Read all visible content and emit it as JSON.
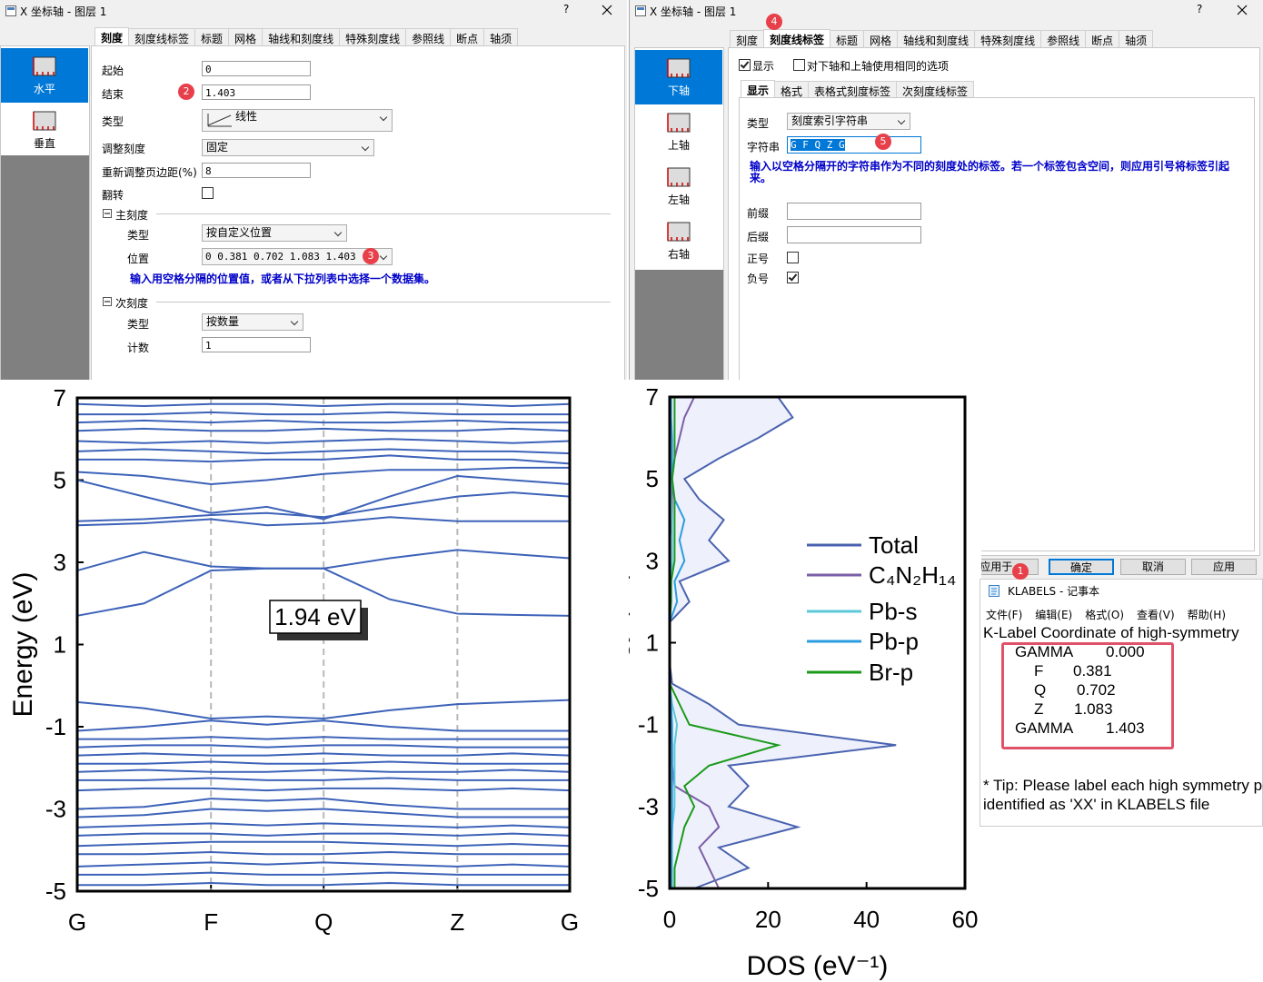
{
  "dialog_left": {
    "title": "X 坐标轴 - 图层 1",
    "help": "?",
    "tabs": [
      "刻度",
      "刻度线标签",
      "标题",
      "网格",
      "轴线和刻度线",
      "特殊刻度线",
      "参照线",
      "断点",
      "轴须"
    ],
    "side": [
      "水平",
      "垂直"
    ],
    "start_label": "起始",
    "start": "0",
    "end_label": "结束",
    "end": "1.403",
    "type_label": "类型",
    "type": "线性",
    "rescale_label": "调整刻度",
    "rescale": "固定",
    "margin_label": "重新调整页边距(%)",
    "margin": "8",
    "flip_label": "翻转",
    "major": {
      "title": "主刻度",
      "type_label": "类型",
      "type": "按自定义位置",
      "pos_label": "位置",
      "pos": "0 0.381 0.702 1.083 1.403",
      "hint": "输入用空格分隔的位置值，或者从下拉列表中选择一个数据集。"
    },
    "minor": {
      "title": "次刻度",
      "type_label": "类型",
      "type": "按数量",
      "count_label": "计数",
      "count": "1"
    }
  },
  "dialog_right": {
    "title": "X 坐标轴 - 图层 1",
    "help": "?",
    "tabs": [
      "刻度",
      "刻度线标签",
      "标题",
      "网格",
      "轴线和刻度线",
      "特殊刻度线",
      "参照线",
      "断点",
      "轴须"
    ],
    "side": [
      "下轴",
      "上轴",
      "左轴",
      "右轴"
    ],
    "show": "显示",
    "same": "对下轴和上轴使用相同的选项",
    "subtabs": [
      "显示",
      "格式",
      "表格式刻度标签",
      "次刻度线标签"
    ],
    "type_label": "类型",
    "type": "刻度索引字符串",
    "string_label": "字符串",
    "string": "G F Q Z G",
    "hint": "输入以空格分隔开的字符串作为不同的刻度处的标签。若一个标签包含空间，则应用引号将标签引起来。",
    "prefix_label": "前缀",
    "suffix_label": "后缀",
    "plus_label": "正号",
    "minus_label": "负号",
    "buttons": [
      "应用于...",
      "确定",
      "取消",
      "应用"
    ]
  },
  "notepad": {
    "title": "KLABELS - 记事本",
    "menu": [
      "文件(F)",
      "编辑(E)",
      "格式(O)",
      "查看(V)",
      "帮助(H)"
    ],
    "header": "K-Label    Coordinate of high-symmetry",
    "rows": [
      [
        "GAMMA",
        "0.000"
      ],
      [
        "F",
        "0.381"
      ],
      [
        "Q",
        "0.702"
      ],
      [
        "Z",
        "1.083"
      ],
      [
        "GAMMA",
        "1.403"
      ]
    ],
    "tip": [
      "* Tip: Please label each high symmetry po",
      "identified as 'XX' in KLABELS file"
    ]
  },
  "badges": [
    "1",
    "2",
    "3",
    "4",
    "5"
  ],
  "chart_data": [
    {
      "type": "line",
      "color": "#3d62b8",
      "ylabel": "Energy (eV)",
      "annotation": "1.94 eV",
      "xgrid": true,
      "x": [
        0,
        0.19,
        0.381,
        0.54,
        0.702,
        0.89,
        1.083,
        1.24,
        1.403
      ],
      "xlim": [
        0,
        1.403
      ],
      "ylim": [
        -5,
        7
      ],
      "xticks": [
        {
          "value": 0,
          "label": "G"
        },
        {
          "value": 0.381,
          "label": "F"
        },
        {
          "value": 0.702,
          "label": "Q"
        },
        {
          "value": 1.083,
          "label": "Z"
        },
        {
          "value": 1.403,
          "label": "G"
        }
      ],
      "yticks": [
        -5,
        -3,
        -1,
        1,
        3,
        5,
        7
      ],
      "series": [
        {
          "values": [
            1.7,
            2.0,
            2.8,
            2.85,
            2.85,
            2.1,
            1.75,
            1.72,
            1.7
          ]
        },
        {
          "values": [
            2.8,
            3.25,
            2.9,
            2.85,
            2.85,
            3.1,
            3.3,
            3.2,
            3.1
          ]
        },
        {
          "values": [
            3.9,
            3.95,
            4.05,
            3.9,
            3.95,
            4.1,
            4.0,
            4.0,
            4.0
          ]
        },
        {
          "values": [
            4.0,
            4.05,
            4.15,
            4.2,
            4.1,
            4.35,
            4.6,
            4.7,
            4.6
          ]
        },
        {
          "values": [
            5.0,
            4.6,
            4.2,
            4.35,
            4.05,
            4.6,
            5.1,
            5.0,
            4.9
          ]
        },
        {
          "values": [
            5.2,
            5.1,
            4.9,
            5.0,
            5.15,
            5.25,
            5.25,
            5.3,
            5.3
          ]
        },
        {
          "values": [
            5.5,
            5.5,
            5.45,
            5.5,
            5.5,
            5.6,
            5.5,
            5.5,
            5.4
          ]
        },
        {
          "values": [
            5.7,
            5.75,
            5.7,
            5.65,
            5.7,
            5.75,
            5.7,
            5.7,
            5.65
          ]
        },
        {
          "values": [
            5.95,
            5.9,
            5.95,
            5.9,
            5.95,
            6.0,
            5.95,
            5.9,
            5.95
          ]
        },
        {
          "values": [
            6.2,
            6.25,
            6.2,
            6.2,
            6.25,
            6.2,
            6.2,
            6.25,
            6.2
          ]
        },
        {
          "values": [
            6.4,
            6.45,
            6.4,
            6.45,
            6.4,
            6.4,
            6.45,
            6.4,
            6.4
          ]
        },
        {
          "values": [
            6.6,
            6.6,
            6.65,
            6.6,
            6.6,
            6.65,
            6.6,
            6.6,
            6.6
          ]
        },
        {
          "values": [
            6.85,
            6.8,
            6.85,
            6.85,
            6.8,
            6.85,
            6.85,
            6.8,
            6.85
          ]
        },
        {
          "values": [
            -0.4,
            -0.55,
            -0.8,
            -0.75,
            -0.8,
            -0.6,
            -0.45,
            -0.4,
            -0.35
          ]
        },
        {
          "values": [
            -1.1,
            -1.0,
            -0.85,
            -0.95,
            -0.85,
            -1.0,
            -1.1,
            -1.1,
            -1.1
          ]
        },
        {
          "values": [
            -1.3,
            -1.3,
            -1.25,
            -1.3,
            -1.25,
            -1.3,
            -1.3,
            -1.3,
            -1.3
          ]
        },
        {
          "values": [
            -1.5,
            -1.45,
            -1.45,
            -1.5,
            -1.45,
            -1.45,
            -1.5,
            -1.5,
            -1.5
          ]
        },
        {
          "values": [
            -1.7,
            -1.65,
            -1.7,
            -1.7,
            -1.65,
            -1.7,
            -1.7,
            -1.65,
            -1.7
          ]
        },
        {
          "values": [
            -1.9,
            -1.9,
            -1.85,
            -1.9,
            -1.9,
            -1.85,
            -1.9,
            -1.9,
            -1.9
          ]
        },
        {
          "values": [
            -2.1,
            -2.05,
            -2.1,
            -2.1,
            -2.05,
            -2.1,
            -2.1,
            -2.05,
            -2.1
          ]
        },
        {
          "values": [
            -2.3,
            -2.3,
            -2.25,
            -2.3,
            -2.3,
            -2.25,
            -2.3,
            -2.3,
            -2.3
          ]
        },
        {
          "values": [
            -2.55,
            -2.5,
            -2.5,
            -2.55,
            -2.5,
            -2.5,
            -2.55,
            -2.5,
            -2.55
          ]
        },
        {
          "values": [
            -3.0,
            -2.95,
            -2.75,
            -2.8,
            -2.75,
            -2.9,
            -3.0,
            -3.0,
            -3.0
          ]
        },
        {
          "values": [
            -3.2,
            -3.15,
            -3.0,
            -3.05,
            -3.0,
            -3.1,
            -3.2,
            -3.2,
            -3.2
          ]
        },
        {
          "values": [
            -3.45,
            -3.4,
            -3.35,
            -3.4,
            -3.35,
            -3.4,
            -3.45,
            -3.4,
            -3.45
          ]
        },
        {
          "values": [
            -3.65,
            -3.6,
            -3.6,
            -3.65,
            -3.6,
            -3.6,
            -3.65,
            -3.6,
            -3.65
          ]
        },
        {
          "values": [
            -3.9,
            -3.85,
            -3.8,
            -3.8,
            -3.8,
            -3.85,
            -3.9,
            -3.85,
            -3.9
          ]
        },
        {
          "values": [
            -4.1,
            -4.1,
            -4.05,
            -4.1,
            -4.1,
            -4.05,
            -4.1,
            -4.1,
            -4.1
          ]
        },
        {
          "values": [
            -4.4,
            -4.35,
            -4.3,
            -4.35,
            -4.3,
            -4.35,
            -4.4,
            -4.35,
            -4.4
          ]
        },
        {
          "values": [
            -4.6,
            -4.6,
            -4.55,
            -4.6,
            -4.6,
            -4.55,
            -4.6,
            -4.6,
            -4.6
          ]
        },
        {
          "values": [
            -4.85,
            -4.85,
            -4.8,
            -4.85,
            -4.85,
            -4.8,
            -4.85,
            -4.85,
            -4.85
          ]
        }
      ]
    },
    {
      "type": "line",
      "orientation": "horizontal",
      "xlabel": "DOS (eV⁻¹)",
      "ylabel": "Energy (eV)",
      "legend": "right",
      "y": [
        -5,
        -4.5,
        -4,
        -3.5,
        -3,
        -2.5,
        -2,
        -1.5,
        -1,
        -0.5,
        0,
        0.5,
        1,
        1.5,
        2,
        2.5,
        3,
        3.5,
        4,
        4.5,
        5,
        5.5,
        6,
        6.5,
        7
      ],
      "xlim": [
        0,
        60
      ],
      "ylim": [
        -5,
        7
      ],
      "xticks": [
        0,
        20,
        40,
        60
      ],
      "yticks": [
        -5,
        -3,
        -1,
        1,
        3,
        5,
        7
      ],
      "series": [
        {
          "name": "Total",
          "color": "#4a63b0",
          "fill": "#eef0fb",
          "values": [
            5,
            16,
            10,
            26,
            12,
            16,
            12,
            46,
            14,
            8,
            0.5,
            0,
            0,
            0,
            4,
            2,
            12,
            8,
            11,
            6,
            3,
            10,
            18,
            25,
            22
          ]
        },
        {
          "name": "C₄N₂H₁₄",
          "color": "#7b5ea7",
          "values": [
            10,
            8,
            6,
            10,
            8,
            1,
            0.5,
            0.5,
            0.3,
            0.2,
            0,
            0,
            0,
            0,
            0,
            0,
            0,
            0,
            0.5,
            0.5,
            0.5,
            1,
            2,
            3,
            5
          ]
        },
        {
          "name": "Pb-s",
          "color": "#5bc8d8",
          "values": [
            0.5,
            0.5,
            0.5,
            0.5,
            1,
            1,
            1,
            1,
            1.5,
            0.5,
            0,
            0,
            0,
            0,
            0.3,
            0.3,
            0.5,
            0.5,
            0.5,
            0.3,
            0.2,
            0.2,
            0.2,
            0.2,
            0.2
          ]
        },
        {
          "name": "Pb-p",
          "color": "#2b9de0",
          "values": [
            0.3,
            0.3,
            0.3,
            0.5,
            0.5,
            0.5,
            0.5,
            0.5,
            0.5,
            0.3,
            0,
            0,
            0,
            0,
            1.5,
            1,
            3,
            2,
            3,
            1,
            0.5,
            0.5,
            0.5,
            0.3,
            0.3
          ]
        },
        {
          "name": "Br-p",
          "color": "#1a9a1a",
          "values": [
            1,
            1,
            2,
            3,
            5,
            3,
            8,
            22,
            4,
            2,
            0,
            0,
            0,
            0,
            0.3,
            0.3,
            1,
            1,
            1,
            1,
            0.5,
            1,
            1,
            1,
            1
          ]
        }
      ]
    }
  ]
}
